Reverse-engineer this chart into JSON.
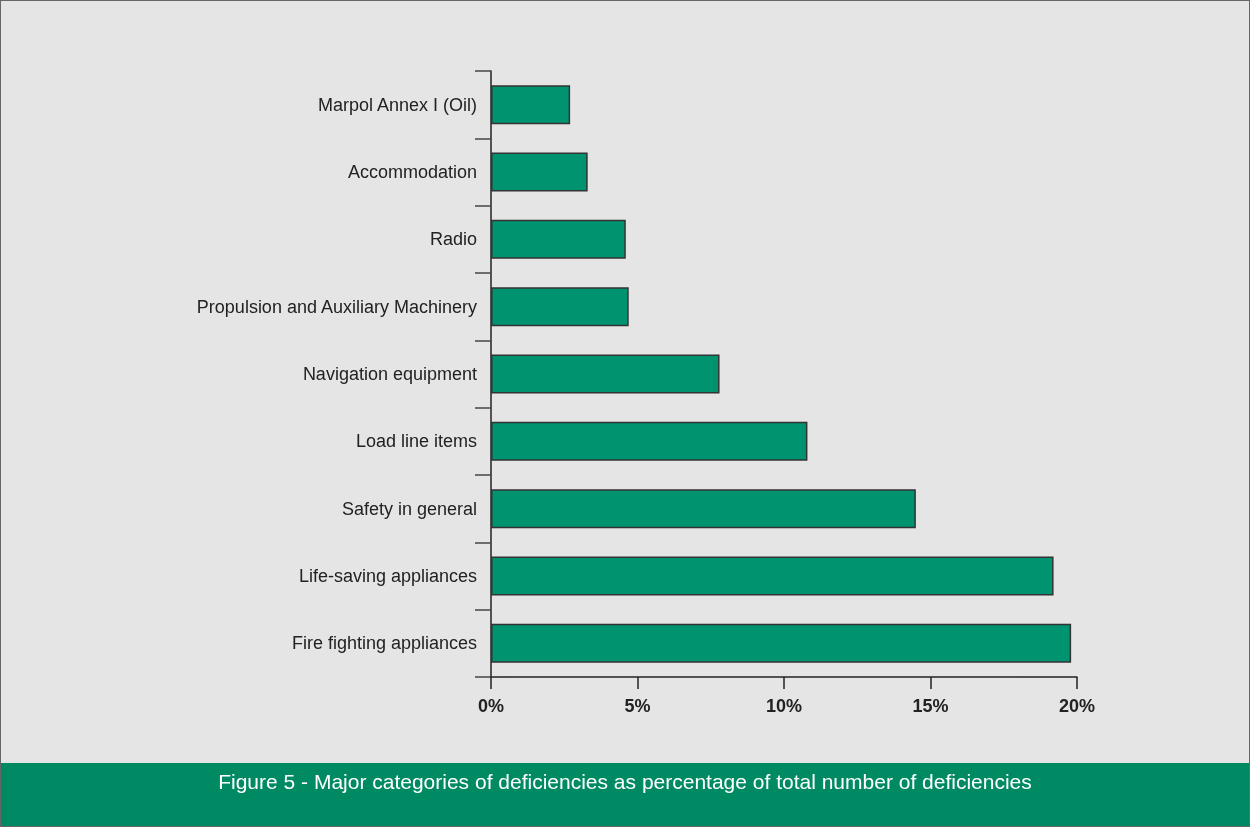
{
  "chart_data": {
    "type": "bar",
    "orientation": "horizontal",
    "title": "Figure 5 - Major categories of deficiencies as percentage of total number of deficiencies",
    "categories": [
      "Marpol Annex I (Oil)",
      "Accommodation",
      "Radio",
      "Propulsion and Auxiliary Machinery",
      "Navigation equipment",
      "Load line items",
      "Safety in general",
      "Life-saving appliances",
      "Fire fighting appliances"
    ],
    "values": [
      2.7,
      3.3,
      4.6,
      4.7,
      7.8,
      10.8,
      14.5,
      19.2,
      19.8
    ],
    "color": "#009370",
    "xlim": [
      0,
      20
    ],
    "xticks": [
      {
        "value": 0,
        "label": "0%"
      },
      {
        "value": 5,
        "label": "5%"
      },
      {
        "value": 10,
        "label": "10%"
      },
      {
        "value": 15,
        "label": "15%"
      },
      {
        "value": 20,
        "label": "20%"
      }
    ],
    "data_labels": false
  }
}
